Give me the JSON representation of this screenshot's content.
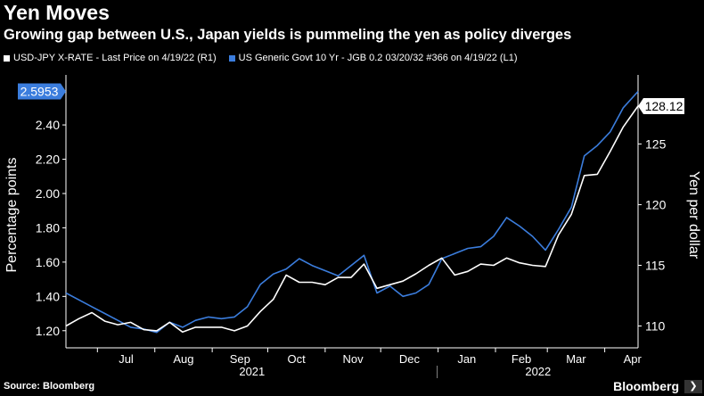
{
  "header": {
    "title": "Yen Moves",
    "subtitle": "Growing gap between U.S., Japan yields is pummeling the yen as policy diverges"
  },
  "legend": [
    {
      "label": "USD-JPY X-RATE - Last Price on 4/19/22 (R1)",
      "color": "#ffffff"
    },
    {
      "label": "US Generic Govt 10 Yr - JGB 0.2 03/20/32 #366 on 4/19/22 (L1)",
      "color": "#3b7ddd"
    }
  ],
  "footer": {
    "source": "Source: Bloomberg",
    "brand": "Bloomberg",
    "brand_icon": "arrow-icon"
  },
  "colors": {
    "background": "#000000",
    "spread": "#3b7ddd",
    "usdjpy": "#ffffff"
  },
  "chart_data": {
    "type": "line",
    "x_ticks": [
      "Jul",
      "Aug",
      "Sep",
      "Oct",
      "Nov",
      "Dec",
      "Jan",
      "Feb",
      "Mar",
      "Apr"
    ],
    "x_years": [
      "2021",
      "2022"
    ],
    "left_axis": {
      "label": "Percentage points",
      "ticks": [
        "1.20",
        "1.40",
        "1.60",
        "1.80",
        "2.00",
        "2.20",
        "2.40"
      ],
      "ylim": [
        1.1,
        2.65
      ]
    },
    "right_axis": {
      "label": "Yen per dollar",
      "ticks": [
        "110",
        "115",
        "120",
        "125"
      ],
      "ylim": [
        108.2,
        130.1
      ]
    },
    "last_value_labels": {
      "left": "2.5953",
      "right": "128.12"
    },
    "grid": false,
    "series": [
      {
        "name": "US Generic Govt 10 Yr - JGB 0.2 03/20/32 #366",
        "axis": "left",
        "x": [
          "2021-06-14",
          "2021-06-21",
          "2021-06-28",
          "2021-07-05",
          "2021-07-12",
          "2021-07-19",
          "2021-07-26",
          "2021-08-02",
          "2021-08-09",
          "2021-08-16",
          "2021-08-23",
          "2021-08-30",
          "2021-09-06",
          "2021-09-13",
          "2021-09-20",
          "2021-09-27",
          "2021-10-04",
          "2021-10-11",
          "2021-10-18",
          "2021-10-25",
          "2021-11-01",
          "2021-11-08",
          "2021-11-15",
          "2021-11-22",
          "2021-11-29",
          "2021-12-06",
          "2021-12-13",
          "2021-12-20",
          "2021-12-27",
          "2022-01-03",
          "2022-01-10",
          "2022-01-17",
          "2022-01-24",
          "2022-01-31",
          "2022-02-07",
          "2022-02-14",
          "2022-02-21",
          "2022-02-28",
          "2022-03-07",
          "2022-03-14",
          "2022-03-21",
          "2022-03-28",
          "2022-04-04",
          "2022-04-11",
          "2022-04-19"
        ],
        "values": [
          1.42,
          1.38,
          1.34,
          1.3,
          1.26,
          1.22,
          1.21,
          1.19,
          1.25,
          1.22,
          1.26,
          1.28,
          1.27,
          1.28,
          1.34,
          1.47,
          1.53,
          1.56,
          1.62,
          1.58,
          1.55,
          1.52,
          1.58,
          1.64,
          1.42,
          1.46,
          1.4,
          1.42,
          1.47,
          1.62,
          1.65,
          1.68,
          1.69,
          1.75,
          1.86,
          1.81,
          1.75,
          1.67,
          1.79,
          1.92,
          2.22,
          2.28,
          2.36,
          2.5,
          2.5953
        ]
      },
      {
        "name": "USD-JPY X-RATE",
        "axis": "right",
        "x": [
          "2021-06-14",
          "2021-06-21",
          "2021-06-28",
          "2021-07-05",
          "2021-07-12",
          "2021-07-19",
          "2021-07-26",
          "2021-08-02",
          "2021-08-09",
          "2021-08-16",
          "2021-08-23",
          "2021-08-30",
          "2021-09-06",
          "2021-09-13",
          "2021-09-20",
          "2021-09-27",
          "2021-10-04",
          "2021-10-11",
          "2021-10-18",
          "2021-10-25",
          "2021-11-01",
          "2021-11-08",
          "2021-11-15",
          "2021-11-22",
          "2021-11-29",
          "2021-12-06",
          "2021-12-13",
          "2021-12-20",
          "2021-12-27",
          "2022-01-03",
          "2022-01-10",
          "2022-01-17",
          "2022-01-24",
          "2022-01-31",
          "2022-02-07",
          "2022-02-14",
          "2022-02-21",
          "2022-02-28",
          "2022-03-07",
          "2022-03-14",
          "2022-03-21",
          "2022-03-28",
          "2022-04-04",
          "2022-04-11",
          "2022-04-19"
        ],
        "values": [
          110.0,
          110.6,
          111.1,
          110.4,
          110.1,
          110.3,
          109.7,
          109.6,
          110.3,
          109.5,
          109.9,
          109.9,
          109.9,
          109.6,
          110.0,
          111.2,
          112.2,
          114.2,
          113.6,
          113.6,
          113.4,
          114.0,
          114.0,
          115.1,
          113.1,
          113.4,
          113.7,
          114.3,
          115.0,
          115.6,
          114.2,
          114.5,
          115.1,
          115.0,
          115.6,
          115.2,
          115.0,
          114.9,
          117.5,
          119.2,
          122.4,
          122.5,
          124.4,
          126.4,
          128.12
        ]
      }
    ]
  }
}
